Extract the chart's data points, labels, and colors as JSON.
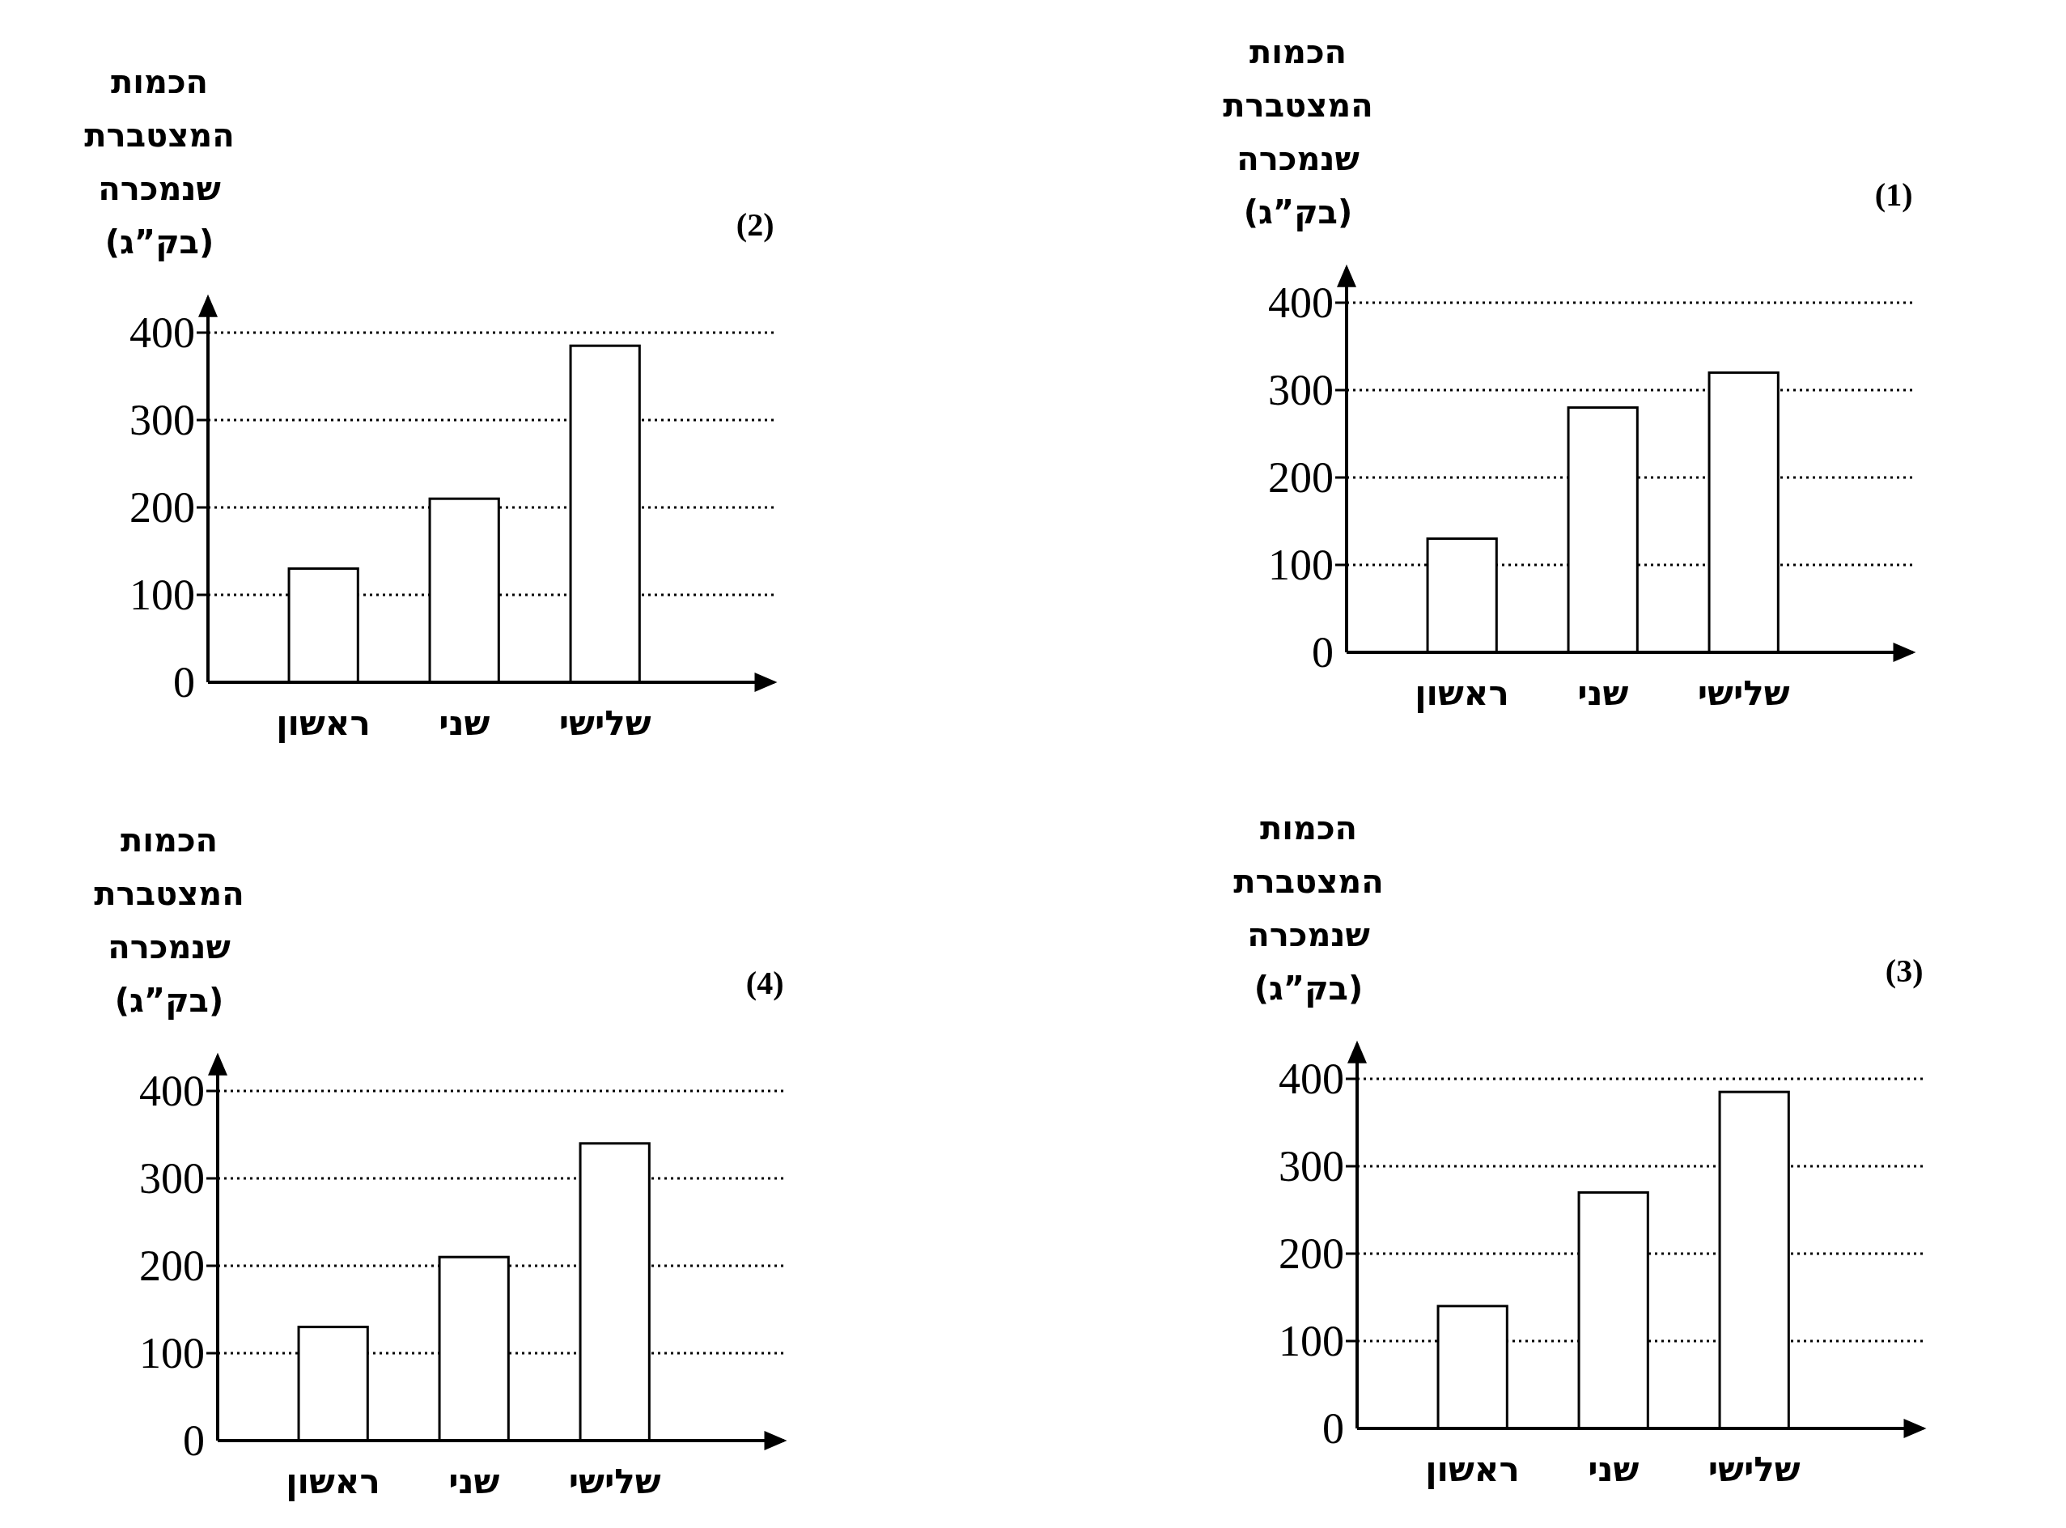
{
  "chart_data": [
    {
      "type": "bar",
      "title": "(1)",
      "ylabel": "הכמות המצטברת שנמכרה (בק”ג)",
      "categories": [
        "ראשון",
        "שני",
        "שלישי"
      ],
      "values": [
        130,
        280,
        320
      ],
      "color": "#ffffff",
      "ylim": [
        0,
        440
      ],
      "yticks": [
        0,
        100,
        200,
        300,
        400
      ],
      "grid": "y"
    },
    {
      "type": "bar",
      "title": "(2)",
      "ylabel": "הכמות המצטברת שנמכרה (בק”ג)",
      "categories": [
        "ראשון",
        "שני",
        "שלישי"
      ],
      "values": [
        130,
        210,
        385
      ],
      "color": "#ffffff",
      "ylim": [
        0,
        440
      ],
      "yticks": [
        0,
        100,
        200,
        300,
        400
      ],
      "grid": "y"
    },
    {
      "type": "bar",
      "title": "(3)",
      "ylabel": "הכמות המצטברת שנמכרה (בק”ג)",
      "categories": [
        "ראשון",
        "שני",
        "שלישי"
      ],
      "values": [
        140,
        270,
        385
      ],
      "color": "#ffffff",
      "ylim": [
        0,
        440
      ],
      "yticks": [
        0,
        100,
        200,
        300,
        400
      ],
      "grid": "y"
    },
    {
      "type": "bar",
      "title": "(4)",
      "ylabel": "הכמות המצטברת שנמכרה (בק”ג)",
      "categories": [
        "ראשון",
        "שני",
        "שלישי"
      ],
      "values": [
        130,
        210,
        340
      ],
      "color": "#ffffff",
      "ylim": [
        0,
        440
      ],
      "yticks": [
        0,
        100,
        200,
        300,
        400
      ],
      "grid": "y"
    }
  ]
}
